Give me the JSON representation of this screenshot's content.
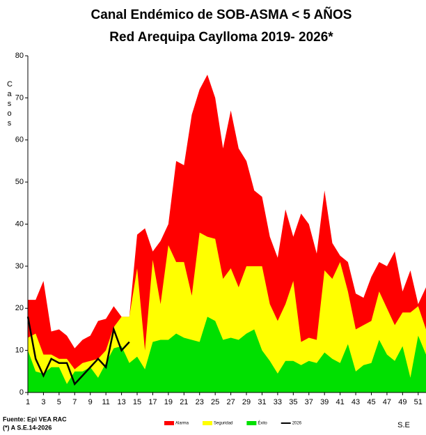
{
  "chart_data": {
    "type": "area",
    "title": "Canal Endémico de SOB-ASMA < 5 AÑOS",
    "subtitle": "Red Arequipa Caylloma 2019- 2026*",
    "ylabel": "Casos",
    "xlabel": "S.E",
    "source": "Fuente: Epi VEA RAC",
    "note": "(*) A S.E.14-2026",
    "x": [
      1,
      2,
      3,
      4,
      5,
      6,
      7,
      8,
      9,
      10,
      11,
      12,
      13,
      14,
      15,
      16,
      17,
      18,
      19,
      20,
      21,
      22,
      23,
      24,
      25,
      26,
      27,
      28,
      29,
      30,
      31,
      32,
      33,
      34,
      35,
      36,
      37,
      38,
      39,
      40,
      41,
      42,
      43,
      44,
      45,
      46,
      47,
      48,
      49,
      50,
      51,
      52
    ],
    "xlim": [
      1,
      52
    ],
    "xticks": [
      1,
      3,
      5,
      7,
      9,
      11,
      13,
      15,
      17,
      19,
      21,
      23,
      25,
      27,
      29,
      31,
      33,
      35,
      37,
      39,
      41,
      43,
      45,
      47,
      49,
      51
    ],
    "ylim": [
      0,
      80
    ],
    "yticks": [
      0,
      10,
      20,
      30,
      40,
      50,
      60,
      70,
      80
    ],
    "grid": false,
    "legend": "bottom",
    "series": [
      {
        "name": "Alarma",
        "color": "#ff0000",
        "kind": "area",
        "values": [
          22,
          22,
          26.5,
          14.5,
          15,
          13.5,
          10.5,
          12.5,
          13.5,
          17,
          17.5,
          20.5,
          18,
          18,
          37.5,
          39,
          33.5,
          36,
          40,
          55,
          54,
          66,
          72,
          75.5,
          70,
          58,
          67,
          58,
          55,
          48,
          46.5,
          37,
          32,
          43.5,
          37,
          42.5,
          40,
          33,
          48,
          35.5,
          32.5,
          31,
          23.5,
          22.5,
          27.5,
          31,
          30,
          33.5,
          24,
          29,
          21,
          25
        ]
      },
      {
        "name": "Seguridad",
        "color": "#ffff00",
        "kind": "area",
        "values": [
          13,
          14,
          9,
          9,
          8,
          8,
          5.5,
          7,
          7.5,
          8,
          10,
          15.5,
          18,
          18,
          29.5,
          10,
          31.5,
          21,
          35,
          31,
          31,
          23,
          38,
          37,
          36.5,
          27,
          29.5,
          25,
          30,
          30,
          30,
          21,
          17,
          21,
          26.5,
          12,
          13,
          12.5,
          29,
          27,
          31,
          24,
          15,
          16,
          17,
          24,
          20,
          16,
          19,
          19,
          20.5,
          15
        ]
      },
      {
        "name": "Éxito",
        "color": "#00e000",
        "kind": "area",
        "values": [
          10,
          5,
          4.5,
          6,
          6,
          2,
          5,
          5,
          6,
          3.5,
          7,
          10.5,
          11,
          7,
          8.5,
          5.5,
          12,
          12.5,
          12.5,
          14,
          13,
          12.5,
          12,
          18,
          17,
          12.5,
          13,
          12.5,
          14,
          15,
          10,
          7.5,
          4.5,
          7.5,
          7.5,
          6.5,
          7.5,
          7,
          9.5,
          8,
          7,
          11.5,
          5,
          6.5,
          7,
          12.5,
          9,
          7.5,
          11,
          3.5,
          13.5,
          9
        ]
      },
      {
        "name": "2026",
        "color": "#000000",
        "kind": "line",
        "values": [
          18,
          8,
          4,
          8,
          7,
          7,
          2,
          4,
          6,
          8,
          6,
          15,
          10,
          12,
          null,
          null,
          null,
          null,
          null,
          null,
          null,
          null,
          null,
          null,
          null,
          null,
          null,
          null,
          null,
          null,
          null,
          null,
          null,
          null,
          null,
          null,
          null,
          null,
          null,
          null,
          null,
          null,
          null,
          null,
          null,
          null,
          null,
          null,
          null,
          null,
          null,
          null
        ]
      }
    ]
  }
}
